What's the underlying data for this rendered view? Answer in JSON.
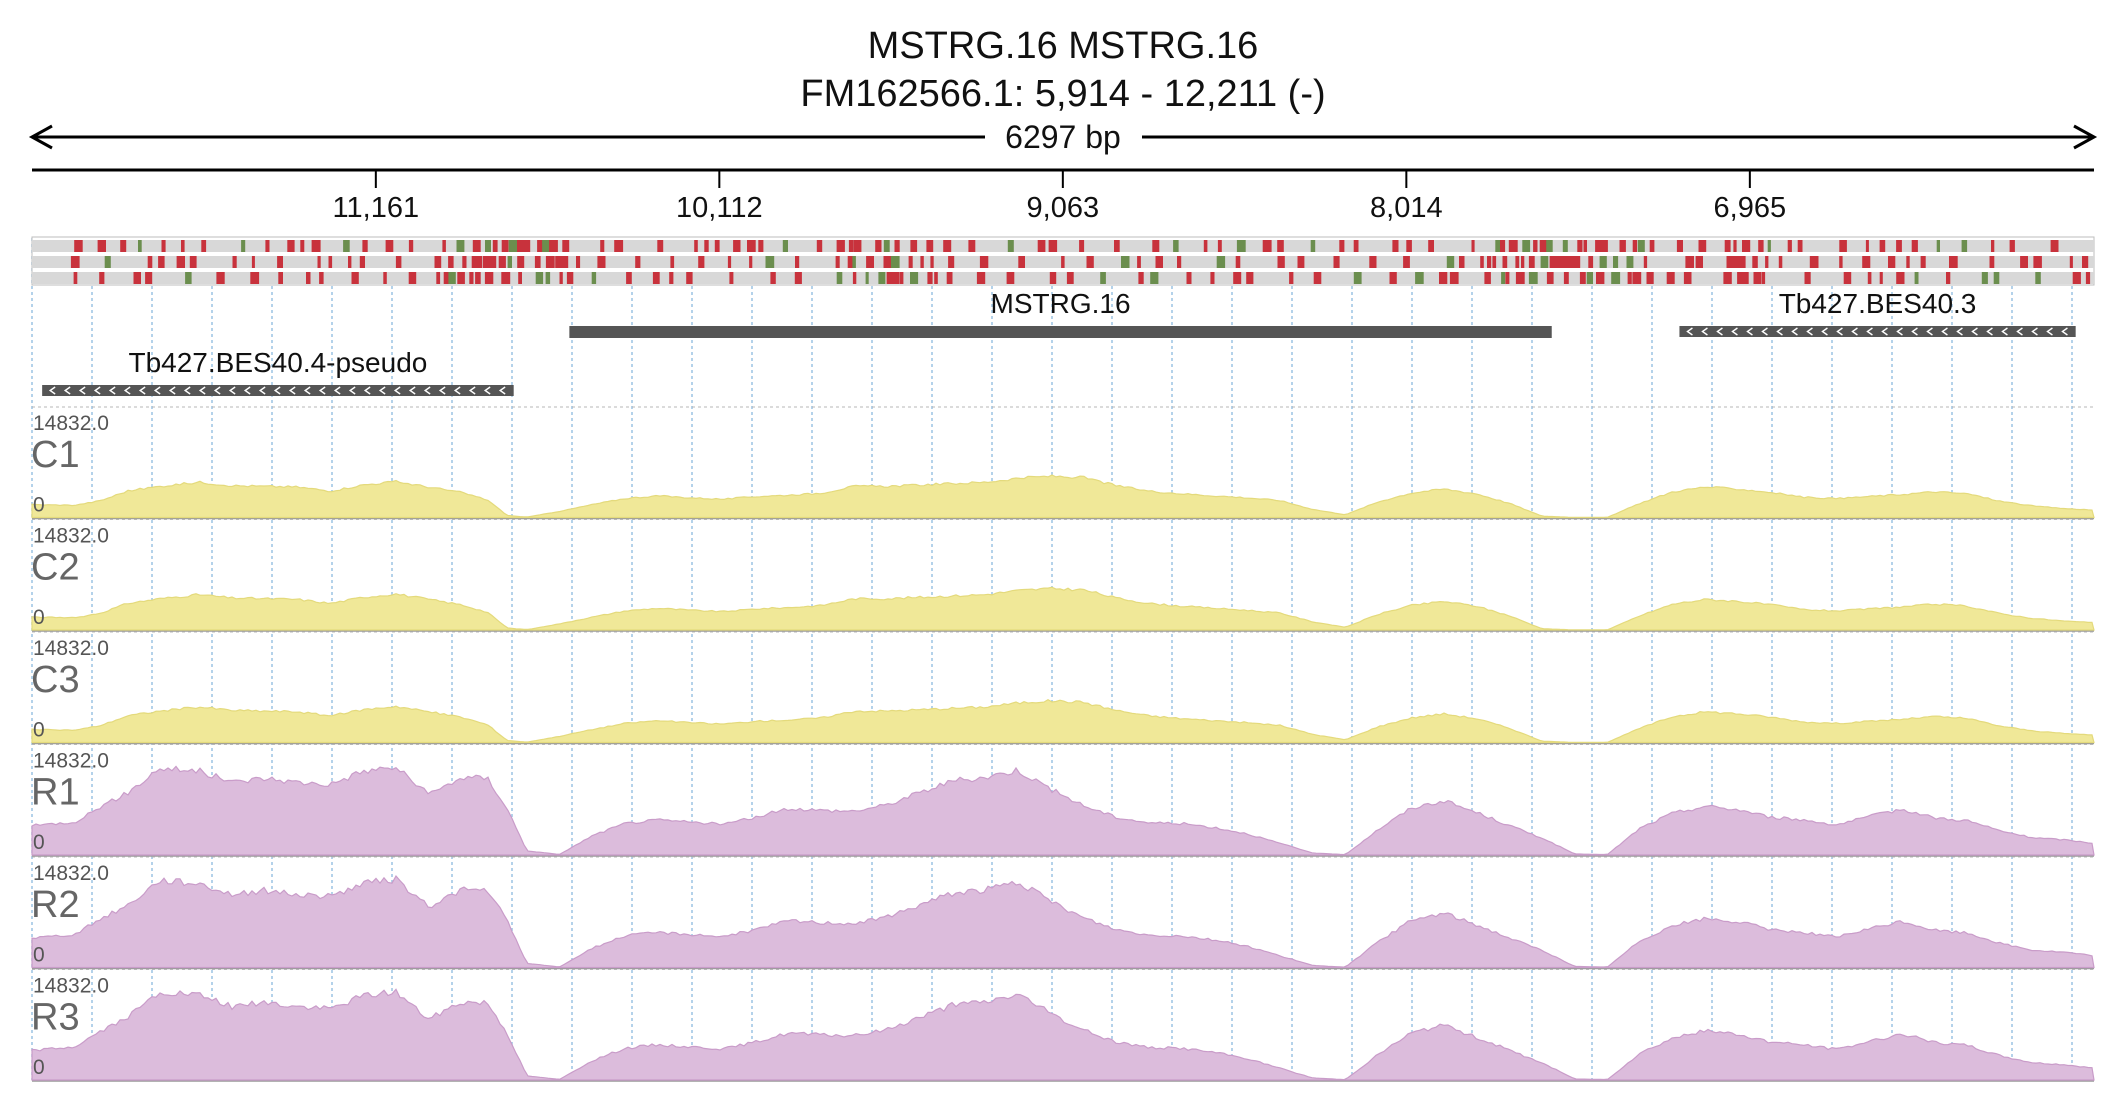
{
  "header": {
    "title_line1": "MSTRG.16  MSTRG.16",
    "title_line2": "FM162566.1: 5,914 - 12,211 (-)",
    "span_label": "6297 bp"
  },
  "colors": {
    "control": "#f0e898",
    "control_stroke": "#e4da7c",
    "rnai": "#dcbcdc",
    "rnai_stroke": "#c99cc9",
    "snp_red": "#c8323c",
    "snp_green": "#6b8e4e",
    "gene_bar": "#555555",
    "grid": "#9cc4e4"
  },
  "chart_data": {
    "type": "area",
    "x_axis": {
      "ticks": [
        11161,
        10112,
        9063,
        8014,
        6965
      ],
      "tick_labels": [
        "11,161",
        "10,112",
        "9,063",
        "8,014",
        "6,965"
      ],
      "range": [
        12211,
        5914
      ],
      "orientation": "reversed (minus strand)"
    },
    "genes": [
      {
        "name": "Tb427.BES40.4-pseudo",
        "start": 12180,
        "end": 10740,
        "strand": "-"
      },
      {
        "name": "MSTRG.16",
        "start": 10570,
        "end": 7570,
        "strand": "none"
      },
      {
        "name": "Tb427.BES40.3",
        "start": 7180,
        "end": 5970,
        "strand": "-"
      }
    ],
    "snp_rows": 3,
    "tracks": [
      {
        "name": "C1",
        "group": "control",
        "ymax": "14832.0",
        "ymin": "0"
      },
      {
        "name": "C2",
        "group": "control",
        "ymax": "14832.0",
        "ymin": "0"
      },
      {
        "name": "C3",
        "group": "control",
        "ymax": "14832.0",
        "ymin": "0"
      },
      {
        "name": "R1",
        "group": "rnai",
        "ymax": "14832.0",
        "ymin": "0"
      },
      {
        "name": "R2",
        "group": "rnai",
        "ymax": "14832.0",
        "ymin": "0"
      },
      {
        "name": "R3",
        "group": "rnai",
        "ymax": "14832.0",
        "ymin": "0"
      }
    ],
    "coverage_profile": {
      "positions": [
        12211,
        12080,
        12000,
        11920,
        11820,
        11700,
        11600,
        11500,
        11400,
        11300,
        11200,
        11100,
        11000,
        10900,
        10820,
        10760,
        10700,
        10600,
        10500,
        10400,
        10300,
        10200,
        10100,
        10000,
        9900,
        9800,
        9700,
        9600,
        9500,
        9400,
        9300,
        9200,
        9100,
        9000,
        8900,
        8800,
        8700,
        8600,
        8500,
        8400,
        8300,
        8200,
        8100,
        8000,
        7900,
        7800,
        7700,
        7600,
        7500,
        7400,
        7300,
        7200,
        7100,
        7000,
        6900,
        6800,
        6700,
        6600,
        6500,
        6400,
        6300,
        6200,
        6100,
        6000,
        5914
      ],
      "control_values": [
        1900,
        1800,
        2500,
        3900,
        4600,
        5200,
        4700,
        4600,
        4500,
        3900,
        4800,
        5300,
        4500,
        3700,
        2600,
        300,
        50,
        900,
        1900,
        2800,
        3200,
        2900,
        2700,
        3100,
        3300,
        3600,
        4600,
        4600,
        4800,
        5000,
        5200,
        5800,
        6100,
        5900,
        4700,
        3900,
        3500,
        3200,
        2900,
        2500,
        1200,
        400,
        2300,
        3600,
        4200,
        3500,
        2100,
        200,
        10,
        20,
        2100,
        3800,
        4500,
        4200,
        3700,
        3000,
        2800,
        3100,
        3400,
        3800,
        3500,
        2400,
        1700,
        1300,
        1100
      ],
      "rnai_values": [
        4300,
        4800,
        7100,
        9000,
        12700,
        12200,
        10600,
        11200,
        10600,
        10300,
        12200,
        12800,
        8800,
        11300,
        11200,
        6800,
        600,
        80,
        2800,
        4600,
        5100,
        4800,
        4500,
        5500,
        6800,
        6500,
        6400,
        7300,
        9100,
        10800,
        11300,
        12400,
        9600,
        7200,
        5500,
        4700,
        4600,
        4000,
        3100,
        1700,
        300,
        50,
        3700,
        6800,
        7900,
        6200,
        4300,
        2500,
        150,
        60,
        3900,
        6100,
        7100,
        6600,
        5500,
        5100,
        4400,
        5600,
        6700,
        5400,
        5000,
        3500,
        2500,
        2200,
        1700
      ]
    }
  }
}
